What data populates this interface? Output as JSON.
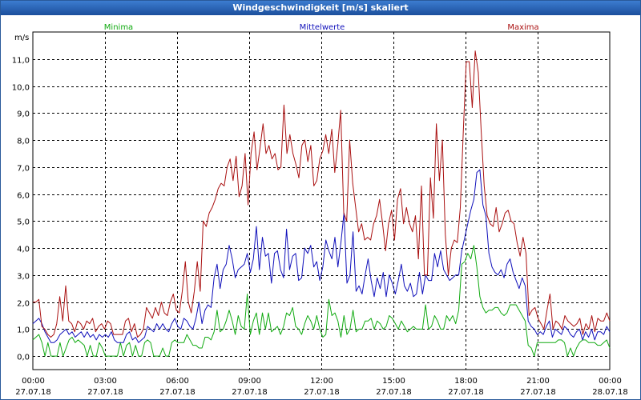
{
  "window": {
    "title": "Windgeschwindigkeit [m/s] skaliert"
  },
  "chart_data": {
    "type": "line",
    "title": "Windgeschwindigkeit [m/s] skaliert",
    "ylabel": "m/s",
    "ylim": [
      -0.5,
      12.0
    ],
    "xlim": [
      0,
      24
    ],
    "yticks": [
      "0,0",
      "1,0",
      "2,0",
      "3,0",
      "4,0",
      "5,0",
      "6,0",
      "7,0",
      "8,0",
      "9,0",
      "10,0",
      "11,0"
    ],
    "xticks": [
      {
        "time": "00:00",
        "date": "27.07.18"
      },
      {
        "time": "03:00",
        "date": "27.07.18"
      },
      {
        "time": "06:00",
        "date": "27.07.18"
      },
      {
        "time": "09:00",
        "date": "27.07.18"
      },
      {
        "time": "12:00",
        "date": "27.07.18"
      },
      {
        "time": "15:00",
        "date": "27.07.18"
      },
      {
        "time": "18:00",
        "date": "27.07.18"
      },
      {
        "time": "21:00",
        "date": "27.07.18"
      },
      {
        "time": "00:00",
        "date": "28.07.18"
      }
    ],
    "grid": true,
    "sample_interval_hours": 0.1667,
    "series": [
      {
        "name": "Maxima",
        "color": "#aa1111",
        "values": [
          2.0,
          2.0,
          2.1,
          1.1,
          1.0,
          0.8,
          0.7,
          0.8,
          1.2,
          2.2,
          1.3,
          2.6,
          1.3,
          1.2,
          0.9,
          1.3,
          1.2,
          1.0,
          1.3,
          1.2,
          1.4,
          0.9,
          1.1,
          1.2,
          1.0,
          1.3,
          1.2,
          0.8,
          0.8,
          0.8,
          0.8,
          1.3,
          1.4,
          0.9,
          1.2,
          0.7,
          0.8,
          1.0,
          1.8,
          1.6,
          1.4,
          1.8,
          1.5,
          2.0,
          1.6,
          1.5,
          2.0,
          2.3,
          1.7,
          1.6,
          2.4,
          3.5,
          2.0,
          1.6,
          2.4,
          3.5,
          2.4,
          5.0,
          4.8,
          5.3,
          5.5,
          5.8,
          6.2,
          6.4,
          6.3,
          7.0,
          7.3,
          6.5,
          7.4,
          5.9,
          6.3,
          7.5,
          5.6,
          7.5,
          8.3,
          6.9,
          7.7,
          8.6,
          7.5,
          7.8,
          7.3,
          7.5,
          6.9,
          7.0,
          9.3,
          7.5,
          8.2,
          7.5,
          7.1,
          6.6,
          7.8,
          8.0,
          7.2,
          7.8,
          6.3,
          6.5,
          7.3,
          7.6,
          8.2,
          7.5,
          8.4,
          6.8,
          7.8,
          9.1,
          5.3,
          5.0,
          8.0,
          6.4,
          5.5,
          4.6,
          4.9,
          4.3,
          4.4,
          4.3,
          4.9,
          5.2,
          5.8,
          4.9,
          3.9,
          4.9,
          5.4,
          4.3,
          5.8,
          6.2,
          4.9,
          5.5,
          4.9,
          4.6,
          5.2,
          3.6,
          6.3,
          3.0,
          3.0,
          6.6,
          5.1,
          8.6,
          6.5,
          8.0,
          4.5,
          3.0,
          4.0,
          4.3,
          4.2,
          5.5,
          8.3,
          10.9,
          10.9,
          9.2,
          11.3,
          10.5,
          8.3,
          6.3,
          5.2,
          4.9,
          4.8,
          5.5,
          4.6,
          4.9,
          5.3,
          5.4,
          5.0,
          4.9,
          4.2,
          3.7,
          4.4,
          3.8,
          1.5,
          1.7,
          1.8,
          1.4,
          1.2,
          1.0,
          1.7,
          2.3,
          1.0,
          1.3,
          1.2,
          1.0,
          1.5,
          1.3,
          1.2,
          1.1,
          1.2,
          1.4,
          0.8,
          1.2,
          1.0,
          1.5,
          0.9,
          1.4,
          1.3,
          1.3,
          1.6,
          1.3
        ]
      },
      {
        "name": "Mittelwerte",
        "color": "#1111bb",
        "values": [
          1.2,
          1.3,
          1.4,
          1.2,
          0.9,
          0.7,
          0.5,
          0.5,
          0.6,
          0.8,
          0.9,
          1.0,
          0.8,
          0.9,
          0.7,
          0.8,
          0.9,
          0.7,
          0.9,
          0.7,
          0.8,
          0.6,
          0.8,
          0.7,
          0.8,
          0.7,
          0.9,
          0.6,
          0.5,
          0.5,
          0.5,
          0.8,
          0.9,
          0.6,
          0.7,
          0.5,
          0.6,
          0.7,
          1.1,
          1.0,
          0.9,
          1.2,
          1.0,
          1.2,
          1.0,
          0.9,
          1.2,
          1.4,
          1.1,
          1.0,
          1.4,
          1.3,
          1.1,
          1.0,
          1.4,
          2.0,
          1.2,
          1.7,
          1.9,
          1.8,
          2.9,
          3.4,
          2.5,
          3.2,
          3.4,
          4.1,
          3.6,
          2.9,
          3.2,
          3.3,
          3.4,
          3.8,
          3.1,
          3.6,
          4.8,
          3.2,
          4.4,
          3.7,
          3.8,
          2.7,
          3.8,
          3.9,
          3.2,
          2.9,
          4.7,
          3.2,
          3.7,
          3.8,
          2.8,
          2.9,
          4.0,
          3.8,
          4.1,
          3.3,
          3.5,
          2.8,
          3.3,
          4.3,
          3.9,
          3.6,
          4.4,
          3.3,
          4.2,
          5.3,
          2.7,
          3.0,
          4.6,
          2.4,
          2.6,
          2.3,
          3.0,
          3.6,
          2.8,
          2.2,
          2.9,
          2.5,
          3.1,
          2.2,
          3.0,
          2.7,
          2.3,
          2.8,
          3.4,
          2.6,
          2.4,
          2.7,
          2.2,
          2.3,
          3.1,
          2.3,
          3.0,
          2.8,
          2.8,
          3.8,
          3.3,
          3.9,
          3.2,
          3.0,
          2.8,
          2.9,
          3.0,
          3.0,
          3.9,
          4.4,
          4.9,
          5.4,
          5.8,
          6.8,
          6.9,
          5.6,
          5.2,
          3.8,
          3.3,
          3.1,
          3.0,
          3.2,
          2.9,
          3.4,
          3.6,
          3.1,
          2.8,
          2.5,
          2.9,
          2.6,
          1.3,
          1.1,
          1.0,
          0.8,
          0.9,
          0.8,
          1.1,
          1.3,
          0.7,
          1.0,
          0.9,
          0.8,
          1.1,
          1.0,
          0.8,
          0.7,
          0.9,
          1.0,
          0.6,
          0.9,
          0.7,
          1.0,
          0.6,
          0.9,
          0.9,
          0.8,
          1.1,
          0.9
        ]
      },
      {
        "name": "Minima",
        "color": "#11aa11",
        "values": [
          0.6,
          0.7,
          0.8,
          0.5,
          0.0,
          0.5,
          0.0,
          0.0,
          0.0,
          0.5,
          0.0,
          0.3,
          0.6,
          0.7,
          0.5,
          0.6,
          0.5,
          0.4,
          0.0,
          0.4,
          0.0,
          0.0,
          0.5,
          0.3,
          0.0,
          0.0,
          0.0,
          0.0,
          0.0,
          0.5,
          0.0,
          0.4,
          0.5,
          0.0,
          0.4,
          0.0,
          0.0,
          0.5,
          0.6,
          0.5,
          0.0,
          0.0,
          0.0,
          0.3,
          0.0,
          0.0,
          0.5,
          0.6,
          0.5,
          0.5,
          0.5,
          0.8,
          0.6,
          0.4,
          0.4,
          0.3,
          0.3,
          0.7,
          0.7,
          0.6,
          0.9,
          1.7,
          0.9,
          1.0,
          1.3,
          1.7,
          1.3,
          0.8,
          1.5,
          1.1,
          1.0,
          2.3,
          0.8,
          1.3,
          1.6,
          0.8,
          1.6,
          1.0,
          1.6,
          0.9,
          1.0,
          1.1,
          0.8,
          1.1,
          1.6,
          1.5,
          1.8,
          1.1,
          1.0,
          0.8,
          1.2,
          1.5,
          1.3,
          1.0,
          1.5,
          1.0,
          0.7,
          0.8,
          2.1,
          1.5,
          1.6,
          1.3,
          0.7,
          1.5,
          0.8,
          1.0,
          1.7,
          0.9,
          1.0,
          1.0,
          1.3,
          1.3,
          1.4,
          1.0,
          1.3,
          1.2,
          1.0,
          1.1,
          1.5,
          1.4,
          1.2,
          1.0,
          1.3,
          1.1,
          0.9,
          1.0,
          1.1,
          1.0,
          1.0,
          1.0,
          1.9,
          1.0,
          1.1,
          1.5,
          1.3,
          1.0,
          1.0,
          1.5,
          1.3,
          1.5,
          1.2,
          1.7,
          3.4,
          3.5,
          3.8,
          3.6,
          4.1,
          3.3,
          2.2,
          1.8,
          1.6,
          1.7,
          1.7,
          1.8,
          1.8,
          1.6,
          1.5,
          1.6,
          1.9,
          1.9,
          1.9,
          1.7,
          1.5,
          1.3,
          0.4,
          0.3,
          0.0,
          0.5,
          0.5,
          0.5,
          0.5,
          0.5,
          0.5,
          0.5,
          0.6,
          0.6,
          0.5,
          0.0,
          0.3,
          0.0,
          0.3,
          0.5,
          0.6,
          0.6,
          0.5,
          0.5,
          0.5,
          0.4,
          0.4,
          0.5,
          0.6,
          0.3
        ]
      }
    ]
  }
}
